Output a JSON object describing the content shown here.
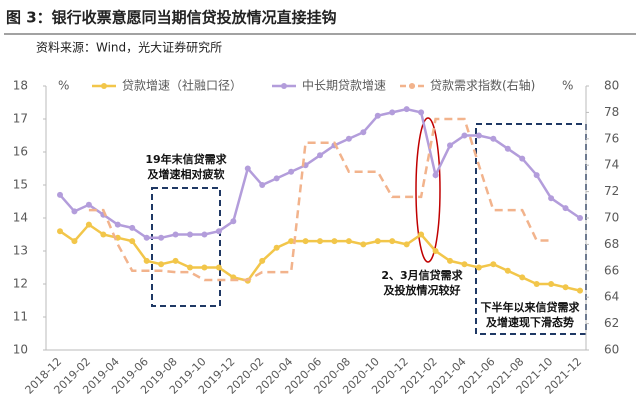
{
  "chart_data": {
    "type": "line",
    "title": "图 3：银行收票意愿同当期信贷投放情况直接挂钩",
    "subtitle": "资料来源：Wind，光大证券研究所",
    "y_unit": "%",
    "y2_unit": "%",
    "categories": [
      "2018-12",
      null,
      "2019-02",
      null,
      "2019-04",
      null,
      "2019-06",
      null,
      "2019-08",
      null,
      "2019-10",
      null,
      "2019-12",
      null,
      "2020-02",
      null,
      "2020-04",
      null,
      "2020-06",
      null,
      "2020-08",
      null,
      "2020-10",
      null,
      "2020-12",
      null,
      "2021-02",
      null,
      "2021-04",
      null,
      "2021-06",
      null,
      "2021-08",
      null,
      "2021-10",
      null,
      "2021-12"
    ],
    "series": [
      {
        "name": "贷款增速（社融口径）",
        "color": "#f2c64a",
        "values": [
          13.6,
          13.3,
          13.8,
          13.5,
          13.4,
          13.3,
          12.7,
          12.6,
          12.7,
          12.5,
          12.5,
          12.5,
          12.2,
          12.1,
          12.7,
          13.1,
          13.3,
          13.3,
          13.3,
          13.3,
          13.3,
          13.2,
          13.3,
          13.3,
          13.2,
          13.5,
          13.0,
          12.7,
          12.6,
          12.5,
          12.6,
          12.4,
          12.2,
          12.0,
          12.0,
          11.9,
          11.8
        ]
      },
      {
        "name": "中长期贷款增速",
        "color": "#b39ddb",
        "values": [
          14.7,
          14.2,
          14.4,
          14.1,
          13.8,
          13.7,
          13.4,
          13.4,
          13.5,
          13.5,
          13.5,
          13.6,
          13.9,
          15.5,
          15.0,
          15.2,
          15.4,
          15.6,
          15.9,
          16.2,
          16.4,
          16.6,
          17.1,
          17.2,
          17.3,
          17.2,
          15.3,
          16.2,
          16.5,
          16.5,
          16.4,
          16.1,
          15.8,
          15.3,
          14.6,
          14.3,
          14.0
        ]
      },
      {
        "name": "贷款需求指数(右轴)",
        "color": "#f2b38c",
        "axis": "y2",
        "dashed": true,
        "values": [
          null,
          null,
          70.6,
          70.6,
          68.0,
          66.0,
          66.0,
          66.0,
          65.9,
          65.9,
          65.3,
          65.3,
          65.3,
          65.3,
          65.9,
          65.9,
          65.9,
          75.7,
          75.7,
          75.7,
          73.5,
          73.5,
          73.5,
          71.6,
          71.6,
          71.6,
          77.5,
          77.5,
          77.5,
          74.0,
          70.6,
          70.6,
          70.6,
          68.3,
          68.3,
          null,
          null
        ]
      }
    ],
    "ylim": [
      10,
      18
    ],
    "yticks": [
      10,
      11,
      12,
      13,
      14,
      15,
      16,
      17,
      18
    ],
    "y2lim": [
      60,
      80
    ],
    "y2ticks": [
      60,
      62,
      64,
      66,
      68,
      70,
      72,
      74,
      76,
      78,
      80
    ],
    "legend": "top",
    "annotations": [
      {
        "lines": [
          "19年末信贷需求",
          "及增速相对疲软"
        ]
      },
      {
        "lines": [
          "2、3月信贷需求",
          "及投放情况较好"
        ]
      },
      {
        "lines": [
          "下半年以来信贷需求",
          "及增速现下滑态势"
        ]
      }
    ]
  }
}
